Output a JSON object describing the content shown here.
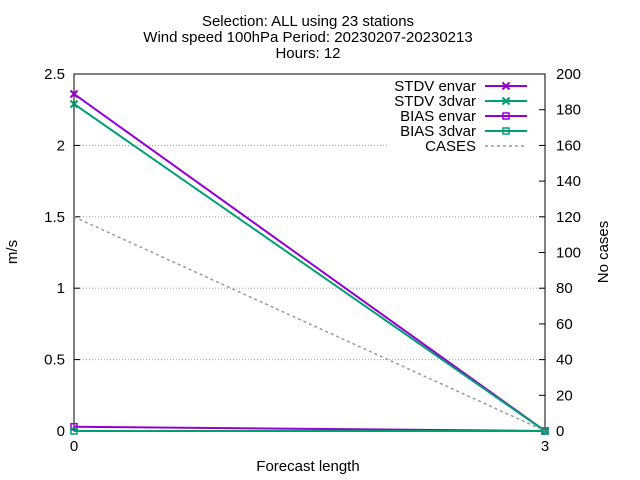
{
  "chart_data": {
    "type": "line",
    "title_lines": [
      "Selection: ALL using    23 stations",
      "Wind speed 100hPa   Period: 20230207-20230213",
      "Hours: 12"
    ],
    "xlabel": "Forecast length",
    "ylabel": "m/s",
    "y2label": "No cases",
    "x_ticks": [
      0,
      3
    ],
    "xlim": [
      0,
      3
    ],
    "y_ticks": [
      "0",
      "0.5",
      "1",
      "1.5",
      "2",
      "2.5"
    ],
    "ylim": [
      0,
      2.5
    ],
    "y2_ticks": [
      "0",
      "20",
      "40",
      "60",
      "80",
      "100",
      "120",
      "140",
      "160",
      "180",
      "200"
    ],
    "y2lim": [
      0,
      200
    ],
    "grid": true,
    "legend_position": "top-right",
    "series": [
      {
        "name": "STDV envar",
        "axis": "y",
        "x": [
          0,
          3
        ],
        "values": [
          2.36,
          0.0
        ],
        "color": "#9400d3",
        "marker": "x",
        "dash": false
      },
      {
        "name": "STDV 3dvar",
        "axis": "y",
        "x": [
          0,
          3
        ],
        "values": [
          2.29,
          0.0
        ],
        "color": "#009e73",
        "marker": "x",
        "dash": false
      },
      {
        "name": "BIAS envar",
        "axis": "y",
        "x": [
          0,
          3
        ],
        "values": [
          0.03,
          0.0
        ],
        "color": "#9400d3",
        "marker": "square",
        "dash": false
      },
      {
        "name": "BIAS 3dvar",
        "axis": "y",
        "x": [
          0,
          3
        ],
        "values": [
          0.0,
          0.0
        ],
        "color": "#009e73",
        "marker": "square",
        "dash": false
      },
      {
        "name": "CASES",
        "axis": "y2",
        "x": [
          0,
          3
        ],
        "values": [
          120,
          0
        ],
        "color": "#999999",
        "marker": "none",
        "dash": true
      }
    ]
  }
}
